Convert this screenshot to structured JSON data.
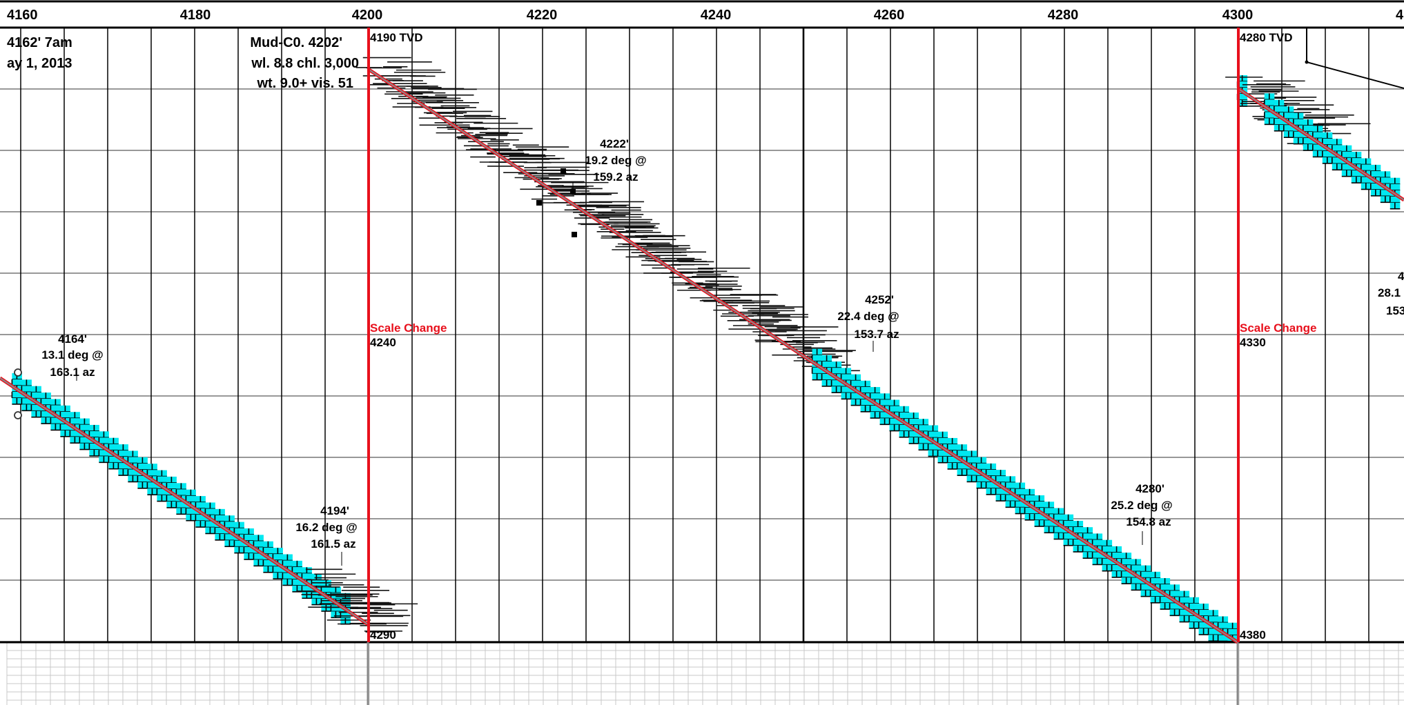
{
  "chart_data": {
    "type": "scatter",
    "title": "",
    "xlabel": "",
    "ylabel": "",
    "xlim": [
      4159,
      4321
    ],
    "top_axis_ticks": [
      "4160",
      "4180",
      "4200",
      "4220",
      "4240",
      "4260",
      "4280",
      "4300",
      "4"
    ],
    "mud_note": [
      "Mud-C0.  4202'",
      "wl. 8.8  chl. 3,000",
      "wt. 9.0+  vis. 51"
    ],
    "report_note": [
      "4162' 7am",
      "ay 1, 2013"
    ],
    "scale_change_label": "Scale Change",
    "tvd_markers": [
      {
        "md": 4200,
        "top": "4190 TVD",
        "mid": "4240",
        "bottom": "4290"
      },
      {
        "md": 4300,
        "top": "4280 TVD",
        "mid": "4330",
        "bottom": "4380"
      }
    ],
    "surveys": [
      {
        "lines": [
          "4164'",
          "13.1 deg @",
          "163.1 az"
        ]
      },
      {
        "lines": [
          "4194'",
          "16.2 deg @",
          "161.5 az"
        ]
      },
      {
        "lines": [
          "4222'",
          "19.2 deg @",
          "159.2 az"
        ]
      },
      {
        "lines": [
          "4252'",
          "22.4 deg @",
          "153.7 az"
        ]
      },
      {
        "lines": [
          "4280'",
          "25.2 deg @",
          "154.8 az"
        ]
      },
      {
        "lines": [
          "4",
          "28.1 d",
          "153"
        ]
      }
    ],
    "lithology": [
      {
        "type": "limestone",
        "color": "#00e8f0",
        "from_md": 4159,
        "to_md": 4197
      },
      {
        "type": "shale",
        "color": "#000000",
        "from_md": 4193,
        "to_md": 4200
      },
      {
        "type": "shale",
        "color": "#000000",
        "from_md": 4200,
        "to_md": 4251
      },
      {
        "type": "limestone",
        "color": "#00e8f0",
        "from_md": 4251,
        "to_md": 4300
      },
      {
        "type": "shale",
        "color": "#000000",
        "from_md": 4300,
        "to_md": 4308
      },
      {
        "type": "limestone",
        "color": "#00e8f0",
        "from_md": 4303,
        "to_md": 4321
      }
    ],
    "colors": {
      "well_path": "#e8101c",
      "scale_change": "#e8101c",
      "limestone": "#00e8f0",
      "grid": "#000000"
    }
  }
}
